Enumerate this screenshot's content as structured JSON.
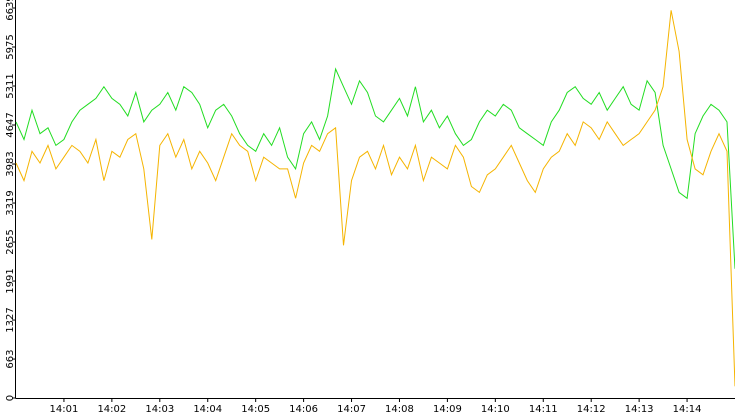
{
  "chart_data": {
    "type": "line",
    "x": [
      "14:00:00",
      "14:00:10",
      "14:00:20",
      "14:00:30",
      "14:00:40",
      "14:00:50",
      "14:01:00",
      "14:01:10",
      "14:01:20",
      "14:01:30",
      "14:01:40",
      "14:01:50",
      "14:02:00",
      "14:02:10",
      "14:02:20",
      "14:02:30",
      "14:02:40",
      "14:02:50",
      "14:03:00",
      "14:03:10",
      "14:03:20",
      "14:03:30",
      "14:03:40",
      "14:03:50",
      "14:04:00",
      "14:04:10",
      "14:04:20",
      "14:04:30",
      "14:04:40",
      "14:04:50",
      "14:05:00",
      "14:05:10",
      "14:05:20",
      "14:05:30",
      "14:05:40",
      "14:05:50",
      "14:06:00",
      "14:06:10",
      "14:06:20",
      "14:06:30",
      "14:06:40",
      "14:06:50",
      "14:07:00",
      "14:07:10",
      "14:07:20",
      "14:07:30",
      "14:07:40",
      "14:07:50",
      "14:08:00",
      "14:08:10",
      "14:08:20",
      "14:08:30",
      "14:08:40",
      "14:08:50",
      "14:09:00",
      "14:09:10",
      "14:09:20",
      "14:09:30",
      "14:09:40",
      "14:09:50",
      "14:10:00",
      "14:10:10",
      "14:10:20",
      "14:10:30",
      "14:10:40",
      "14:10:50",
      "14:11:00",
      "14:11:10",
      "14:11:20",
      "14:11:30",
      "14:11:40",
      "14:11:50",
      "14:12:00",
      "14:12:10",
      "14:12:20",
      "14:12:30",
      "14:12:40",
      "14:12:50",
      "14:13:00",
      "14:13:10",
      "14:13:20",
      "14:13:30",
      "14:13:40",
      "14:13:50",
      "14:14:00",
      "14:14:10",
      "14:14:20",
      "14:14:30",
      "14:14:40",
      "14:14:50",
      "14:15:00"
    ],
    "series": [
      {
        "color": "#22dd22",
        "values": [
          4700,
          4400,
          4900,
          4500,
          4600,
          4300,
          4400,
          4700,
          4900,
          5000,
          5100,
          5300,
          5100,
          5000,
          4800,
          5200,
          4700,
          4900,
          5000,
          5200,
          4900,
          5300,
          5200,
          5000,
          4600,
          4900,
          5000,
          4800,
          4500,
          4300,
          4200,
          4500,
          4300,
          4600,
          4100,
          3900,
          4500,
          4700,
          4400,
          4800,
          5600,
          5300,
          5000,
          5400,
          5200,
          4800,
          4700,
          4900,
          5100,
          4800,
          5300,
          4700,
          4900,
          4600,
          4800,
          4500,
          4300,
          4400,
          4700,
          4900,
          4800,
          5000,
          4900,
          4600,
          4500,
          4400,
          4300,
          4700,
          4900,
          5200,
          5300,
          5100,
          5000,
          5200,
          4900,
          5100,
          5300,
          5000,
          4900,
          5400,
          5200,
          4300,
          3900,
          3500,
          3400,
          4500,
          4800,
          5000,
          4900,
          4700,
          2200
        ]
      },
      {
        "color": "#f5b400",
        "values": [
          4000,
          3700,
          4200,
          4000,
          4300,
          3900,
          4100,
          4300,
          4200,
          4000,
          4400,
          3700,
          4200,
          4100,
          4400,
          4500,
          3900,
          2700,
          4300,
          4500,
          4100,
          4400,
          3900,
          4200,
          4000,
          3700,
          4100,
          4500,
          4300,
          4200,
          3700,
          4100,
          4000,
          3900,
          3900,
          3400,
          4000,
          4300,
          4200,
          4500,
          4600,
          2600,
          3700,
          4100,
          4200,
          3900,
          4300,
          3800,
          4100,
          3900,
          4300,
          3700,
          4100,
          4000,
          3900,
          4300,
          4100,
          3600,
          3500,
          3800,
          3900,
          4100,
          4300,
          4000,
          3700,
          3500,
          3900,
          4100,
          4200,
          4500,
          4300,
          4700,
          4600,
          4400,
          4700,
          4500,
          4300,
          4400,
          4500,
          4700,
          4900,
          5300,
          6600,
          5900,
          4400,
          3900,
          3800,
          4200,
          4500,
          4200,
          200
        ]
      }
    ],
    "xlim": [
      "14:00:00",
      "14:15:00"
    ],
    "xticks": [
      "14:01",
      "14:02",
      "14:03",
      "14:04",
      "14:05",
      "14:06",
      "14:07",
      "14:08",
      "14:09",
      "14:10",
      "14:11",
      "14:12",
      "14:13",
      "14:14"
    ],
    "ylim": [
      0,
      6639
    ],
    "yticks": [
      0,
      663,
      1327,
      1991,
      2655,
      3319,
      3983,
      4647,
      5311,
      5975,
      6639
    ]
  }
}
